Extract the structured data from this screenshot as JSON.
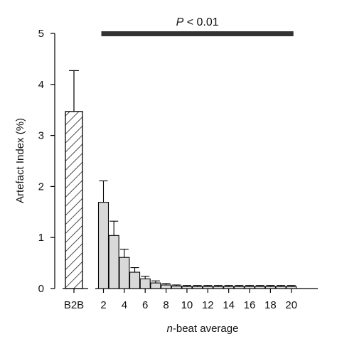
{
  "chart_data": {
    "type": "bar",
    "ylabel": "Artefact Index (%)",
    "xlabel_italic": "n",
    "xlabel_rest": "-beat average",
    "ylim": [
      0,
      5
    ],
    "yticks": [
      "0",
      "1",
      "2",
      "3",
      "4",
      "5"
    ],
    "baseline": {
      "category": "B2B",
      "value": 3.47,
      "error": 0.8,
      "fill": "hatched"
    },
    "series": [
      {
        "x": [
          2,
          3,
          4,
          5,
          6,
          7,
          8,
          9,
          10,
          11,
          12,
          13,
          14,
          15,
          16,
          17,
          18,
          19,
          20
        ],
        "values": [
          1.69,
          1.04,
          0.61,
          0.32,
          0.19,
          0.11,
          0.07,
          0.05,
          0.04,
          0.04,
          0.04,
          0.04,
          0.04,
          0.04,
          0.04,
          0.04,
          0.04,
          0.04,
          0.04
        ],
        "errors": [
          0.42,
          0.28,
          0.16,
          0.09,
          0.05,
          0.04,
          0.03,
          0.02,
          0.02,
          0.02,
          0.02,
          0.02,
          0.02,
          0.02,
          0.02,
          0.02,
          0.02,
          0.02,
          0.02
        ]
      }
    ],
    "xticks": [
      "2",
      "4",
      "6",
      "8",
      "10",
      "12",
      "14",
      "16",
      "18",
      "20"
    ],
    "significance": {
      "label_italic": "P",
      "label_rest": " < 0.01",
      "from": 2,
      "to": 20
    },
    "colors": {
      "bar_fill": "#d9d9d9",
      "bar_stroke": "#000000",
      "sig_bar": "#333333"
    }
  }
}
